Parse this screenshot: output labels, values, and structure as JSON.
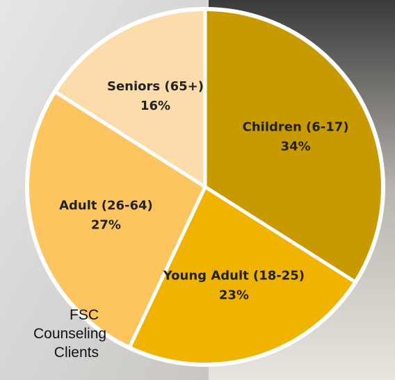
{
  "chart_data": {
    "type": "pie",
    "title": "FSC Counseling Clients",
    "categories": [
      "Children (6-17)",
      "Young Adult (18-25)",
      "Adult (26-64)",
      "Seniors (65+)"
    ],
    "values": [
      34,
      23,
      27,
      16
    ],
    "value_labels": [
      "34%",
      "23%",
      "27%",
      "16%"
    ],
    "colors": [
      "#c99a00",
      "#efb300",
      "#fdc55f",
      "#fddcac"
    ]
  }
}
